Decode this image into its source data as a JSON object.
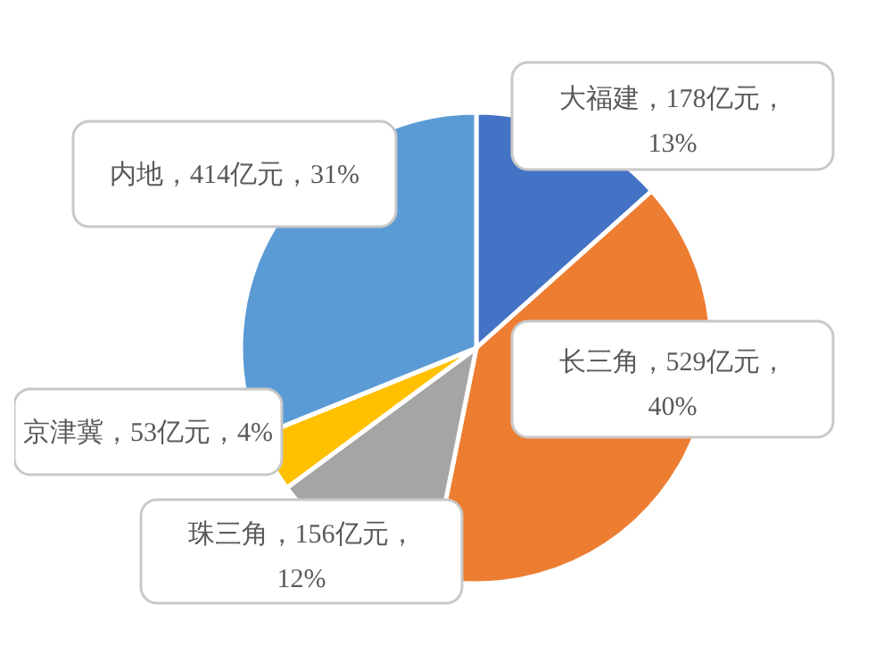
{
  "chart_data": {
    "type": "pie",
    "categories": [
      "大福建",
      "长三角",
      "珠三角",
      "京津冀",
      "内地"
    ],
    "values": [
      178,
      529,
      156,
      53,
      414
    ],
    "colors": [
      "#4472c4",
      "#ed7d31",
      "#a5a5a5",
      "#ffc000",
      "#5b9bd5"
    ],
    "value_labels": [
      "178亿元，13%",
      "529亿元，40%",
      "156亿元，12%",
      "53亿元，4%",
      "414亿元，31%"
    ],
    "legend": false
  }
}
